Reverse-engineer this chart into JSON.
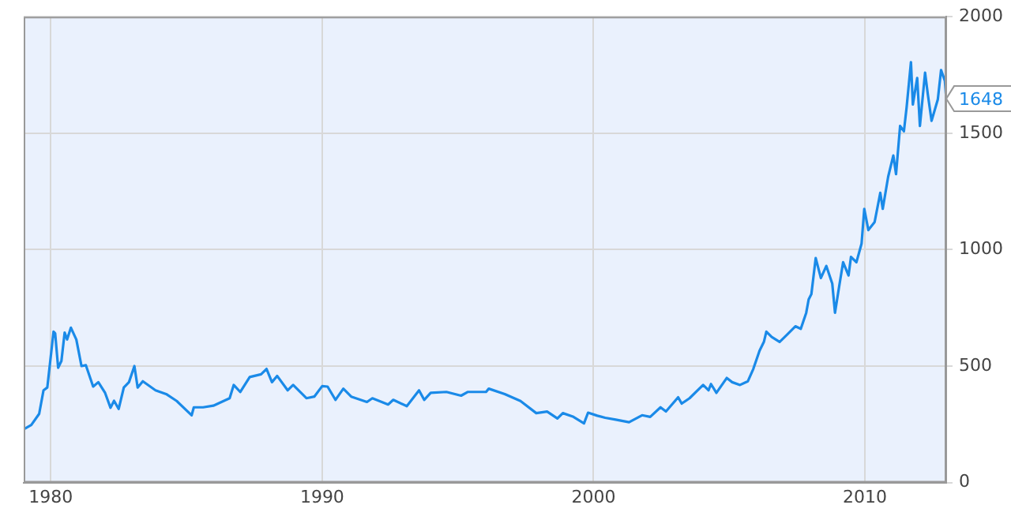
{
  "chart_data": {
    "type": "line",
    "x": [
      1979.0,
      1979.28,
      1979.57,
      1979.73,
      1979.87,
      1980.1,
      1980.16,
      1980.27,
      1980.39,
      1980.51,
      1980.6,
      1980.74,
      1980.94,
      1981.13,
      1981.29,
      1981.56,
      1981.75,
      1982.0,
      1982.2,
      1982.33,
      1982.5,
      1982.69,
      1982.88,
      1983.08,
      1983.2,
      1983.39,
      1983.86,
      1984.25,
      1984.64,
      1985.19,
      1985.27,
      1985.61,
      1985.99,
      1986.59,
      1986.74,
      1986.98,
      1987.33,
      1987.75,
      1987.95,
      1988.15,
      1988.34,
      1988.73,
      1988.93,
      1989.42,
      1989.71,
      1990.0,
      1990.2,
      1990.49,
      1990.78,
      1991.07,
      1991.65,
      1991.85,
      1992.43,
      1992.62,
      1993.12,
      1993.57,
      1993.76,
      1994.0,
      1994.58,
      1995.12,
      1995.36,
      1996.04,
      1996.14,
      1996.73,
      1997.31,
      1997.89,
      1998.29,
      1998.67,
      1998.87,
      1999.26,
      1999.65,
      1999.8,
      2000.14,
      2000.43,
      2000.82,
      2001.31,
      2001.79,
      2002.09,
      2002.47,
      2002.67,
      2003.12,
      2003.25,
      2003.54,
      2004.04,
      2004.24,
      2004.33,
      2004.53,
      2004.91,
      2005.11,
      2005.4,
      2005.69,
      2005.89,
      2006.12,
      2006.28,
      2006.37,
      2006.57,
      2006.86,
      2007.15,
      2007.44,
      2007.64,
      2007.84,
      2007.93,
      2008.03,
      2008.19,
      2008.38,
      2008.58,
      2008.8,
      2008.9,
      2009.04,
      2009.2,
      2009.4,
      2009.49,
      2009.69,
      2009.88,
      2009.98,
      2010.13,
      2010.36,
      2010.57,
      2010.66,
      2010.86,
      2011.05,
      2011.15,
      2011.3,
      2011.44,
      2011.54,
      2011.7,
      2011.77,
      2011.93,
      2012.03,
      2012.22,
      2012.32,
      2012.46,
      2012.69,
      2012.81,
      2012.95,
      2013.0
    ],
    "series": [
      {
        "color": "#1a8ae8",
        "values": [
          229,
          247,
          295,
          396,
          408,
          648,
          640,
          493,
          522,
          644,
          614,
          665,
          614,
          500,
          504,
          412,
          431,
          385,
          321,
          351,
          316,
          408,
          431,
          500,
          408,
          435,
          396,
          380,
          350,
          289,
          323,
          323,
          330,
          362,
          419,
          389,
          453,
          465,
          488,
          431,
          458,
          396,
          419,
          362,
          369,
          414,
          412,
          355,
          403,
          369,
          346,
          362,
          335,
          355,
          328,
          396,
          355,
          385,
          389,
          373,
          389,
          389,
          403,
          380,
          350,
          298,
          305,
          275,
          298,
          282,
          254,
          300,
          287,
          278,
          270,
          259,
          289,
          282,
          323,
          305,
          366,
          339,
          362,
          419,
          396,
          423,
          385,
          449,
          431,
          419,
          435,
          488,
          566,
          604,
          648,
          625,
          604,
          637,
          671,
          660,
          729,
          786,
          809,
          964,
          878,
          930,
          854,
          729,
          832,
          946,
          889,
          969,
          946,
          1026,
          1175,
          1084,
          1118,
          1244,
          1175,
          1313,
          1404,
          1324,
          1531,
          1508,
          1611,
          1805,
          1623,
          1737,
          1531,
          1760,
          1668,
          1553,
          1645,
          1771,
          1725,
          1648
        ]
      }
    ],
    "xlim": [
      1979,
      2013
    ],
    "xticks": [
      1980,
      1990,
      2000,
      2010
    ],
    "ylim": [
      0,
      2000
    ],
    "yticks": [
      0,
      500,
      1000,
      1500,
      2000
    ],
    "grid": true,
    "legend": false,
    "marker": "none",
    "line_style": "solid",
    "annotations": [
      {
        "text": "1648",
        "x": 2013.0,
        "y": 1648
      }
    ]
  }
}
